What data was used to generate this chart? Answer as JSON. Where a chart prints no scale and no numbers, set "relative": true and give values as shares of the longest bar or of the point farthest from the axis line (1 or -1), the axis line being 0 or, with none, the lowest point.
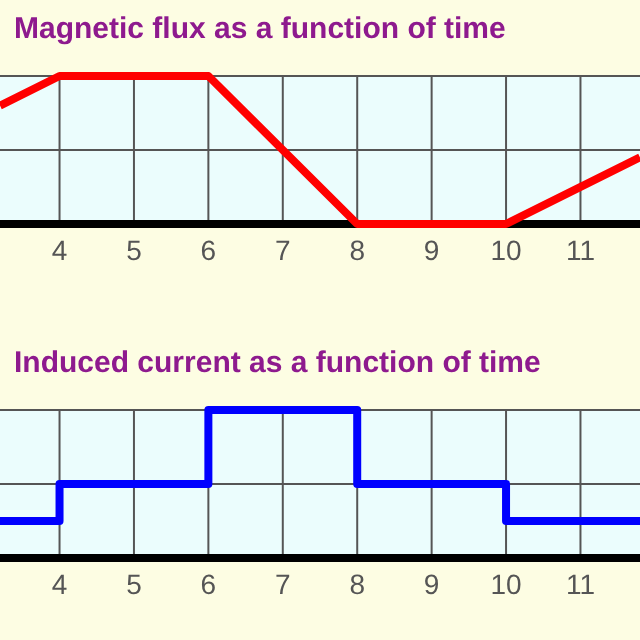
{
  "chart_data": [
    {
      "type": "line",
      "title": "Magnetic flux as a function of time",
      "relative": true,
      "grid": true,
      "x": [
        3.2,
        4,
        6,
        8,
        10,
        11.8
      ],
      "xlim": [
        3.2,
        11.8
      ],
      "xticks": [
        4,
        5,
        6,
        7,
        8,
        9,
        10,
        11
      ],
      "series": [
        {
          "color": "#ff0000",
          "values": [
            0.8,
            1,
            1,
            0,
            0,
            0.45
          ]
        }
      ]
    },
    {
      "type": "step",
      "title": "Induced current as a function of time",
      "relative": true,
      "grid": true,
      "x": [
        3.2,
        4,
        6,
        8,
        10,
        11.8
      ],
      "xlim": [
        3.2,
        11.8
      ],
      "xticks": [
        4,
        5,
        6,
        7,
        8,
        9,
        10,
        11
      ],
      "series": [
        {
          "color": "#0000ff",
          "values": [
            0.25,
            0.5,
            1,
            0.5,
            0.25,
            0.25
          ]
        }
      ]
    }
  ]
}
